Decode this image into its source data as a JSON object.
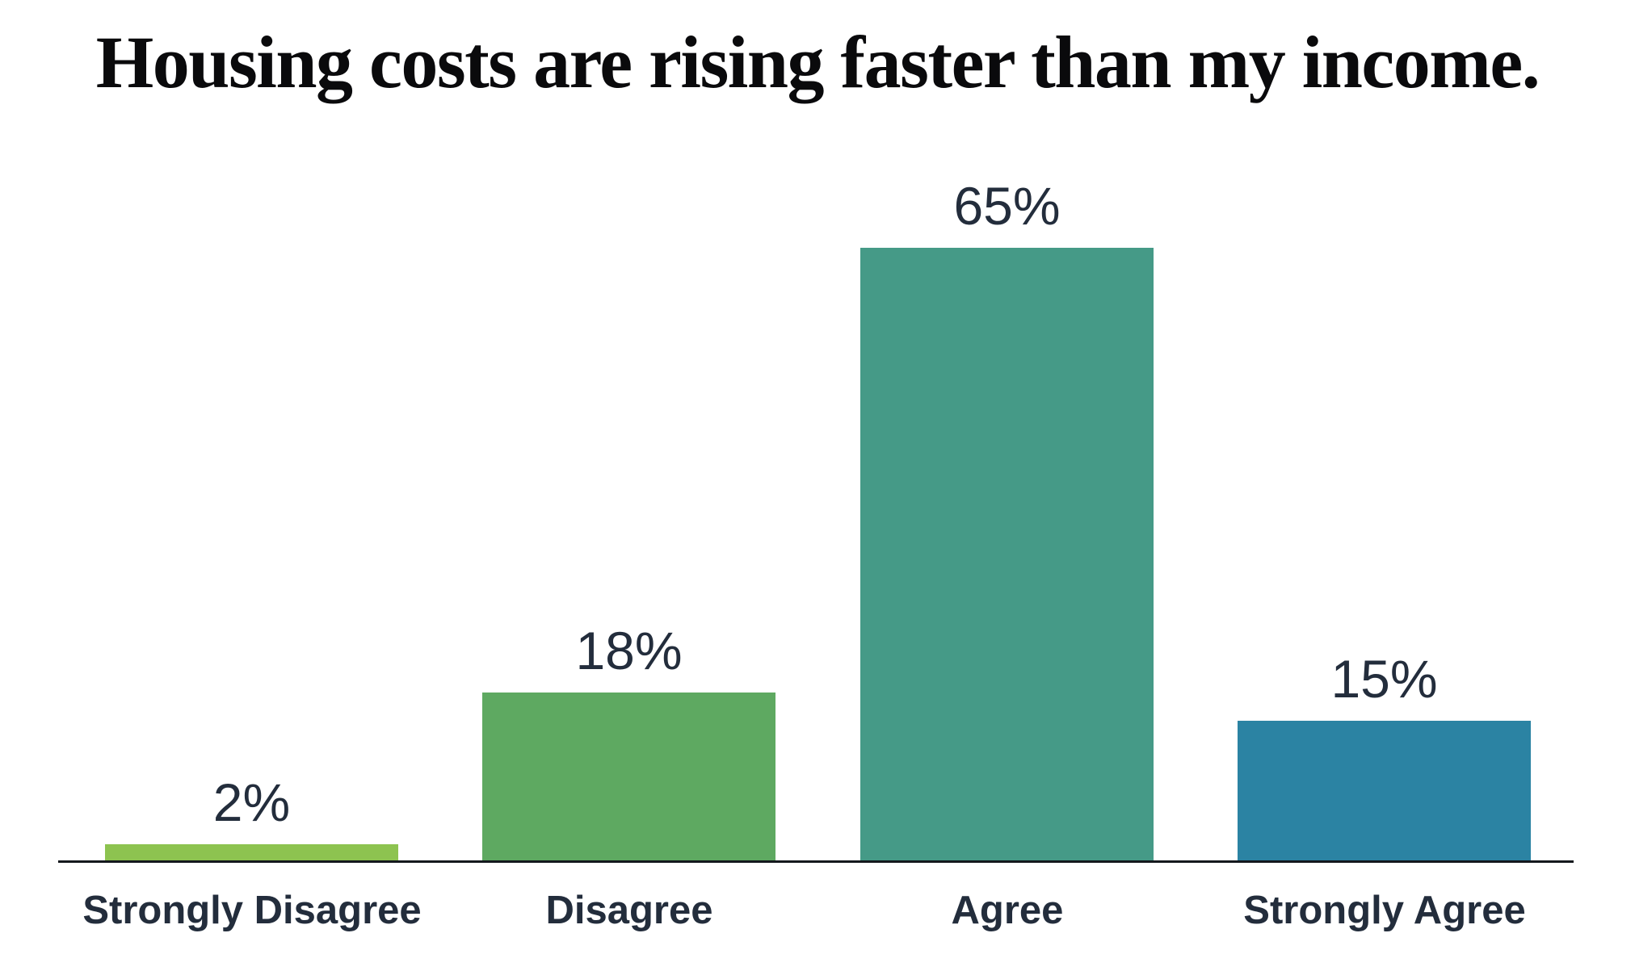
{
  "chart_data": {
    "type": "bar",
    "title": "Housing costs are rising faster than my income.",
    "categories": [
      "Strongly Disagree",
      "Disagree",
      "Agree",
      "Strongly Agree"
    ],
    "values": [
      2,
      18,
      65,
      15
    ],
    "value_labels": [
      "2%",
      "18%",
      "65%",
      "15%"
    ],
    "bar_colors": [
      "#8dc350",
      "#5ea961",
      "#459a87",
      "#2b83a3"
    ],
    "ylim": [
      0,
      70
    ],
    "xlabel": "",
    "ylabel": "",
    "grid": false,
    "legend": "none",
    "axis_color": "#14181d",
    "label_color": "#232d3c",
    "title_color": "#0a0a0c",
    "background": "#ffffff"
  }
}
